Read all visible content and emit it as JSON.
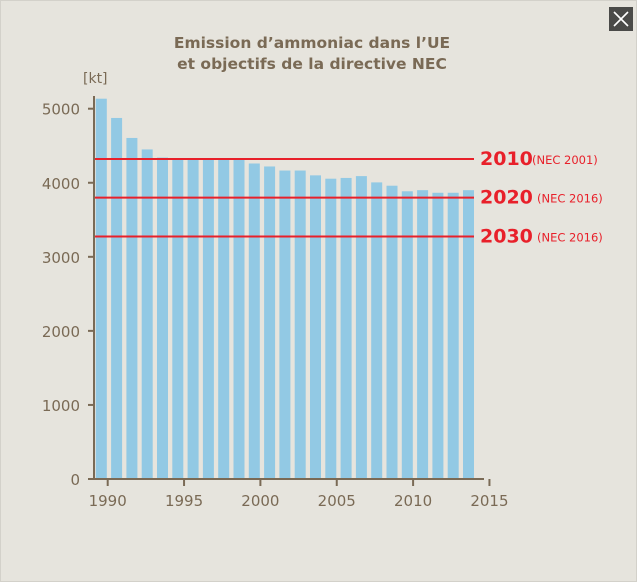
{
  "close_button": {
    "icon": "close-icon"
  },
  "chart_data": {
    "type": "bar",
    "title": [
      "Emission d’ammoniac dans l’UE",
      "et objectifs de la directive NEC"
    ],
    "ylabel": "[kt]",
    "xlabel": "",
    "categories": [
      1990,
      1991,
      1992,
      1993,
      1994,
      1995,
      1996,
      1997,
      1998,
      1999,
      2000,
      2001,
      2002,
      2003,
      2004,
      2005,
      2006,
      2007,
      2008,
      2009,
      2010,
      2011,
      2012,
      2013,
      2014
    ],
    "values": [
      5135,
      4875,
      4605,
      4450,
      4340,
      4320,
      4320,
      4320,
      4320,
      4320,
      4260,
      4220,
      4165,
      4165,
      4100,
      4055,
      4065,
      4090,
      4005,
      3960,
      3885,
      3900,
      3865,
      3865,
      3900
    ],
    "ylim": [
      0,
      5000
    ],
    "yticks": [
      "0",
      "1000",
      "2000",
      "3000",
      "4000",
      "5000"
    ],
    "xlim": [
      1990,
      2015
    ],
    "xticks": [
      "1990",
      "1995",
      "2000",
      "2005",
      "2010",
      "2015"
    ],
    "grid": false,
    "bar_color": "#92c9e4",
    "target_color": "#e8202a",
    "targets": [
      {
        "year": "2010",
        "note": "(NEC 2001)",
        "value": 4320
      },
      {
        "year": "2020",
        "note": "(NEC 2016)",
        "value": 3800
      },
      {
        "year": "2030",
        "note": "(NEC 2016)",
        "value": 3275
      }
    ]
  }
}
